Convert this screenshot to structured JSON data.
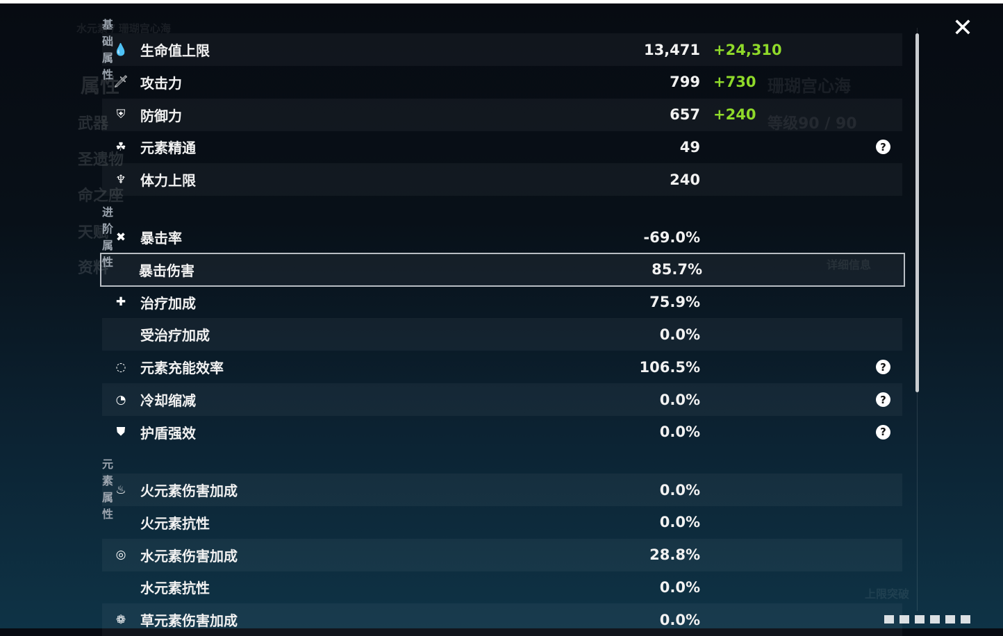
{
  "background": {
    "character_name": "珊瑚宫心海",
    "element_title": "水元素 / 珊瑚宫心海",
    "level": "等级90 / 90",
    "menu": [
      "属性",
      "武器",
      "圣遗物",
      "命之座",
      "天赋",
      "资料"
    ],
    "detail_button": "详细信息",
    "ascend_button": "上限突破"
  },
  "close_icon": "close-icon",
  "colors": {
    "bonus": "#8fd92a",
    "panel_highlight": "#b9bec4"
  },
  "sections": [
    {
      "title": "基础属性",
      "rows": [
        {
          "icon": "droplet-icon",
          "glyph": "💧",
          "label": "生命值上限",
          "value": "13,471",
          "bonus": "+24,310",
          "shade": "light"
        },
        {
          "icon": "sword-icon",
          "glyph": "🗡",
          "label": "攻击力",
          "value": "799",
          "bonus": "+730",
          "shade": "dark"
        },
        {
          "icon": "shield-icon",
          "glyph": "⛨",
          "label": "防御力",
          "value": "657",
          "bonus": "+240",
          "shade": "light"
        },
        {
          "icon": "elemental-mastery-icon",
          "glyph": "☘",
          "label": "元素精通",
          "value": "49",
          "help": true,
          "shade": "dark"
        },
        {
          "icon": "stamina-icon",
          "glyph": "♆",
          "label": "体力上限",
          "value": "240",
          "shade": "light"
        }
      ]
    },
    {
      "title": "进阶属性",
      "rows": [
        {
          "icon": "crit-rate-icon",
          "glyph": "✖",
          "label": "暴击率",
          "value": "-69.0%",
          "shade": "dark"
        },
        {
          "icon": "crit-dmg-icon",
          "glyph": "",
          "label": "暴击伤害",
          "value": "85.7%",
          "shade": "selected"
        },
        {
          "icon": "healing-icon",
          "glyph": "✚",
          "label": "治疗加成",
          "value": "75.9%",
          "shade": "dark"
        },
        {
          "label": "受治疗加成",
          "value": "0.0%",
          "shade": "light"
        },
        {
          "icon": "energy-recharge-icon",
          "glyph": "◌",
          "label": "元素充能效率",
          "value": "106.5%",
          "help": true,
          "shade": "dark"
        },
        {
          "icon": "cooldown-icon",
          "glyph": "◔",
          "label": "冷却缩减",
          "value": "0.0%",
          "help": true,
          "shade": "light"
        },
        {
          "icon": "shield-strength-icon",
          "glyph": "⛊",
          "label": "护盾强效",
          "value": "0.0%",
          "help": true,
          "shade": "dark"
        }
      ]
    },
    {
      "title": "元素属性",
      "rows": [
        {
          "icon": "pyro-icon",
          "glyph": "♨",
          "label": "火元素伤害加成",
          "value": "0.0%",
          "shade": "light"
        },
        {
          "label": "火元素抗性",
          "value": "0.0%",
          "shade": "dark"
        },
        {
          "icon": "hydro-icon",
          "glyph": "◎",
          "label": "水元素伤害加成",
          "value": "28.8%",
          "shade": "light"
        },
        {
          "label": "水元素抗性",
          "value": "0.0%",
          "shade": "dark"
        },
        {
          "icon": "dendro-icon",
          "glyph": "❁",
          "label": "草元素伤害加成",
          "value": "0.0%",
          "shade": "light"
        }
      ]
    }
  ]
}
